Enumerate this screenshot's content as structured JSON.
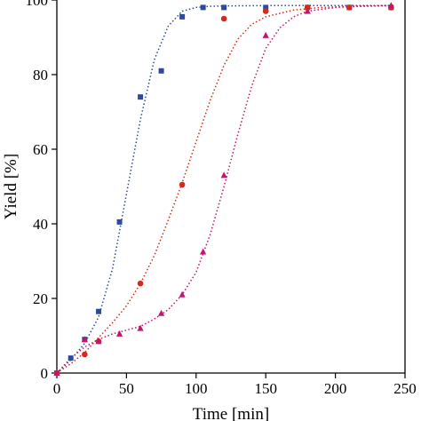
{
  "chart_data": {
    "type": "scatter",
    "xlabel": "Time [min]",
    "ylabel": "Yield [%]",
    "xlim": [
      0,
      250
    ],
    "ylim": [
      0,
      100
    ],
    "xticks": [
      0,
      50,
      100,
      150,
      200,
      250
    ],
    "yticks": [
      0,
      20,
      40,
      60,
      80,
      100
    ],
    "grid": false,
    "legend": "none",
    "series": [
      {
        "marker": "square",
        "color": "#2e4a9c",
        "x": [
          0,
          10,
          20,
          30,
          45,
          60,
          75,
          90,
          105,
          120,
          150,
          180,
          210,
          240
        ],
        "y": [
          0,
          4,
          9,
          16.5,
          40.5,
          74,
          81,
          95.5,
          98,
          98,
          98,
          98,
          98,
          98
        ]
      },
      {
        "marker": "circle",
        "color": "#d42a1c",
        "x": [
          0,
          20,
          30,
          60,
          90,
          120,
          150,
          180,
          210,
          240
        ],
        "y": [
          0,
          5,
          8.5,
          24,
          50.5,
          95,
          97,
          98,
          98,
          98
        ]
      },
      {
        "marker": "triangle",
        "color": "#c0176e",
        "x": [
          0,
          20,
          30,
          45,
          60,
          75,
          90,
          105,
          120,
          150,
          180,
          240
        ],
        "y": [
          0,
          9,
          8.5,
          10.5,
          12,
          16,
          21,
          32.5,
          53,
          90.5,
          97,
          98.5
        ]
      }
    ],
    "fit_curves": [
      {
        "color": "#2e4a9c",
        "x": [
          0,
          10,
          20,
          30,
          40,
          50,
          60,
          70,
          80,
          90,
          100,
          110,
          120,
          150,
          180,
          210,
          240
        ],
        "y": [
          0,
          3.5,
          8,
          15,
          28,
          48,
          68,
          84,
          93,
          97,
          98,
          98.3,
          98.4,
          98.5,
          98.5,
          98.5,
          98.5
        ]
      },
      {
        "color": "#d42a1c",
        "x": [
          0,
          10,
          20,
          30,
          40,
          50,
          60,
          70,
          80,
          90,
          100,
          110,
          120,
          130,
          140,
          150,
          170,
          190,
          210,
          240
        ],
        "y": [
          0,
          2.5,
          5.5,
          9.5,
          13.5,
          18,
          24,
          31.5,
          41,
          51,
          62,
          73,
          82.5,
          89.5,
          93.5,
          95.5,
          97.3,
          98,
          98.3,
          98.5
        ]
      },
      {
        "color": "#c0176e",
        "x": [
          0,
          10,
          20,
          30,
          40,
          50,
          60,
          70,
          80,
          90,
          100,
          110,
          120,
          130,
          140,
          150,
          160,
          170,
          180,
          200,
          220,
          240
        ],
        "y": [
          0,
          4,
          7,
          9,
          10.5,
          11.5,
          12.5,
          14.5,
          17,
          21,
          27,
          37,
          50,
          64,
          77,
          87,
          92.5,
          95.5,
          97,
          98,
          98.3,
          98.5
        ]
      }
    ]
  }
}
